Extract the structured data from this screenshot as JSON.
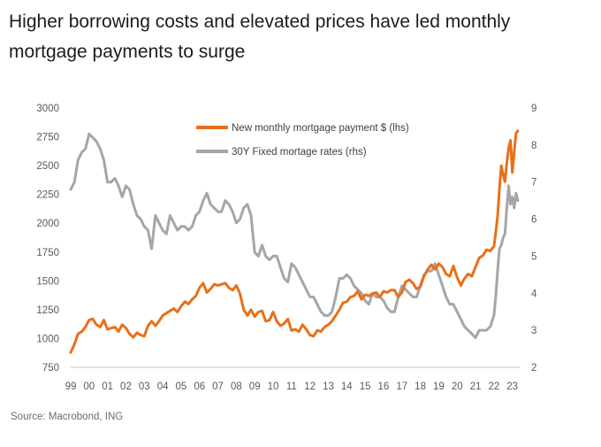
{
  "title": "Higher borrowing costs and elevated prices have led monthly mortgage payments to surge",
  "source": "Source: Macrobond, ING",
  "chart_data": {
    "type": "line",
    "title": "Higher borrowing costs and elevated prices have led monthly mortgage payments to surge",
    "x_tick_labels": [
      "99",
      "00",
      "01",
      "02",
      "03",
      "04",
      "05",
      "06",
      "07",
      "08",
      "09",
      "10",
      "11",
      "12",
      "13",
      "14",
      "15",
      "16",
      "17",
      "18",
      "19",
      "20",
      "21",
      "22",
      "23"
    ],
    "x_range": [
      1999.0,
      2023.4
    ],
    "left_axis": {
      "ticks": [
        "3000",
        "2750",
        "2500",
        "2250",
        "2000",
        "1750",
        "1500",
        "1250",
        "1000",
        "750"
      ],
      "range": [
        750,
        3000
      ]
    },
    "right_axis": {
      "ticks": [
        "9",
        "8",
        "7",
        "6",
        "5",
        "4",
        "3",
        "2"
      ],
      "range": [
        2,
        9
      ]
    },
    "legend": {
      "position": "top-center"
    },
    "colors": {
      "payment": "#e8701a",
      "rate": "#a6a6a6",
      "axis": "#bfbfbf",
      "text": "#595959"
    },
    "series": [
      {
        "name": "New monthly mortgage payment $ (lhs)",
        "axis": "left",
        "x": [
          1999.0,
          1999.2,
          1999.4,
          1999.6,
          1999.8,
          2000.0,
          2000.2,
          2000.4,
          2000.6,
          2000.8,
          2001.0,
          2001.2,
          2001.4,
          2001.6,
          2001.8,
          2002.0,
          2002.2,
          2002.4,
          2002.6,
          2002.8,
          2003.0,
          2003.2,
          2003.4,
          2003.6,
          2003.8,
          2004.0,
          2004.2,
          2004.4,
          2004.6,
          2004.8,
          2005.0,
          2005.2,
          2005.4,
          2005.6,
          2005.8,
          2006.0,
          2006.2,
          2006.4,
          2006.6,
          2006.8,
          2007.0,
          2007.2,
          2007.4,
          2007.6,
          2007.8,
          2008.0,
          2008.2,
          2008.4,
          2008.6,
          2008.8,
          2009.0,
          2009.2,
          2009.4,
          2009.6,
          2009.8,
          2010.0,
          2010.2,
          2010.4,
          2010.6,
          2010.8,
          2011.0,
          2011.2,
          2011.4,
          2011.6,
          2011.8,
          2012.0,
          2012.2,
          2012.4,
          2012.6,
          2012.8,
          2013.0,
          2013.2,
          2013.4,
          2013.6,
          2013.8,
          2014.0,
          2014.2,
          2014.4,
          2014.6,
          2014.8,
          2015.0,
          2015.2,
          2015.4,
          2015.6,
          2015.8,
          2016.0,
          2016.2,
          2016.4,
          2016.6,
          2016.8,
          2017.0,
          2017.2,
          2017.4,
          2017.6,
          2017.8,
          2018.0,
          2018.2,
          2018.4,
          2018.6,
          2018.8,
          2019.0,
          2019.2,
          2019.4,
          2019.6,
          2019.8,
          2020.0,
          2020.2,
          2020.4,
          2020.6,
          2020.8,
          2021.0,
          2021.2,
          2021.4,
          2021.6,
          2021.8,
          2022.0,
          2022.1,
          2022.2,
          2022.3,
          2022.4,
          2022.5,
          2022.6,
          2022.7,
          2022.8,
          2022.9,
          2023.0,
          2023.1,
          2023.2,
          2023.3
        ],
        "values": [
          880,
          950,
          1040,
          1060,
          1100,
          1160,
          1170,
          1120,
          1100,
          1160,
          1080,
          1090,
          1100,
          1060,
          1120,
          1090,
          1040,
          1010,
          1050,
          1030,
          1020,
          1110,
          1150,
          1110,
          1150,
          1200,
          1220,
          1240,
          1260,
          1230,
          1280,
          1320,
          1300,
          1340,
          1370,
          1440,
          1480,
          1400,
          1430,
          1470,
          1460,
          1470,
          1480,
          1440,
          1420,
          1460,
          1390,
          1250,
          1200,
          1250,
          1190,
          1230,
          1240,
          1150,
          1160,
          1230,
          1150,
          1110,
          1130,
          1170,
          1070,
          1080,
          1060,
          1120,
          1080,
          1030,
          1020,
          1070,
          1060,
          1100,
          1120,
          1150,
          1200,
          1250,
          1310,
          1320,
          1360,
          1370,
          1410,
          1340,
          1380,
          1370,
          1390,
          1400,
          1360,
          1410,
          1400,
          1420,
          1420,
          1360,
          1400,
          1490,
          1510,
          1480,
          1430,
          1450,
          1540,
          1600,
          1640,
          1600,
          1650,
          1620,
          1560,
          1540,
          1630,
          1530,
          1460,
          1520,
          1560,
          1540,
          1620,
          1700,
          1720,
          1770,
          1760,
          1800,
          1920,
          2060,
          2300,
          2500,
          2420,
          2360,
          2520,
          2650,
          2720,
          2440,
          2620,
          2780,
          2800
        ]
      },
      {
        "name": "30Y Fixed mortage rates (rhs)",
        "axis": "right",
        "x": [
          1999.0,
          1999.2,
          1999.4,
          1999.6,
          1999.8,
          2000.0,
          2000.2,
          2000.4,
          2000.6,
          2000.8,
          2001.0,
          2001.2,
          2001.4,
          2001.6,
          2001.8,
          2002.0,
          2002.2,
          2002.4,
          2002.6,
          2002.8,
          2003.0,
          2003.2,
          2003.4,
          2003.6,
          2003.8,
          2004.0,
          2004.2,
          2004.4,
          2004.6,
          2004.8,
          2005.0,
          2005.2,
          2005.4,
          2005.6,
          2005.8,
          2006.0,
          2006.2,
          2006.4,
          2006.6,
          2006.8,
          2007.0,
          2007.2,
          2007.4,
          2007.6,
          2007.8,
          2008.0,
          2008.2,
          2008.4,
          2008.6,
          2008.8,
          2009.0,
          2009.2,
          2009.4,
          2009.6,
          2009.8,
          2010.0,
          2010.2,
          2010.4,
          2010.6,
          2010.8,
          2011.0,
          2011.2,
          2011.4,
          2011.6,
          2011.8,
          2012.0,
          2012.2,
          2012.4,
          2012.6,
          2012.8,
          2013.0,
          2013.2,
          2013.4,
          2013.6,
          2013.8,
          2014.0,
          2014.2,
          2014.4,
          2014.6,
          2014.8,
          2015.0,
          2015.2,
          2015.4,
          2015.6,
          2015.8,
          2016.0,
          2016.2,
          2016.4,
          2016.6,
          2016.8,
          2017.0,
          2017.2,
          2017.4,
          2017.6,
          2017.8,
          2018.0,
          2018.2,
          2018.4,
          2018.6,
          2018.8,
          2019.0,
          2019.2,
          2019.4,
          2019.6,
          2019.8,
          2020.0,
          2020.2,
          2020.4,
          2020.6,
          2020.8,
          2021.0,
          2021.2,
          2021.4,
          2021.6,
          2021.8,
          2022.0,
          2022.1,
          2022.2,
          2022.3,
          2022.4,
          2022.5,
          2022.6,
          2022.7,
          2022.8,
          2022.9,
          2023.0,
          2023.1,
          2023.2,
          2023.3
        ],
        "values": [
          6.8,
          7.0,
          7.6,
          7.8,
          7.9,
          8.3,
          8.2,
          8.1,
          7.9,
          7.6,
          7.0,
          7.0,
          7.1,
          6.9,
          6.6,
          6.9,
          6.8,
          6.4,
          6.1,
          6.0,
          5.8,
          5.7,
          5.2,
          6.1,
          5.9,
          5.7,
          5.6,
          6.1,
          5.9,
          5.7,
          5.8,
          5.8,
          5.7,
          5.8,
          6.1,
          6.2,
          6.5,
          6.7,
          6.4,
          6.3,
          6.2,
          6.2,
          6.5,
          6.4,
          6.2,
          5.9,
          6.0,
          6.3,
          6.4,
          6.1,
          5.1,
          5.0,
          5.3,
          5.0,
          4.9,
          5.0,
          5.0,
          4.7,
          4.4,
          4.3,
          4.8,
          4.7,
          4.5,
          4.3,
          4.1,
          3.9,
          3.9,
          3.7,
          3.5,
          3.4,
          3.4,
          3.5,
          3.9,
          4.4,
          4.4,
          4.5,
          4.4,
          4.2,
          4.1,
          4.0,
          3.8,
          3.7,
          4.0,
          3.9,
          3.9,
          3.8,
          3.6,
          3.5,
          3.5,
          3.9,
          4.2,
          4.1,
          4.0,
          3.9,
          3.9,
          4.2,
          4.5,
          4.6,
          4.6,
          4.8,
          4.5,
          4.2,
          3.9,
          3.7,
          3.7,
          3.5,
          3.3,
          3.1,
          3.0,
          2.9,
          2.8,
          3.0,
          3.0,
          3.0,
          3.1,
          3.4,
          3.9,
          4.6,
          5.2,
          5.3,
          5.5,
          5.6,
          6.3,
          6.9,
          6.4,
          6.6,
          6.3,
          6.7,
          6.5
        ]
      }
    ]
  }
}
